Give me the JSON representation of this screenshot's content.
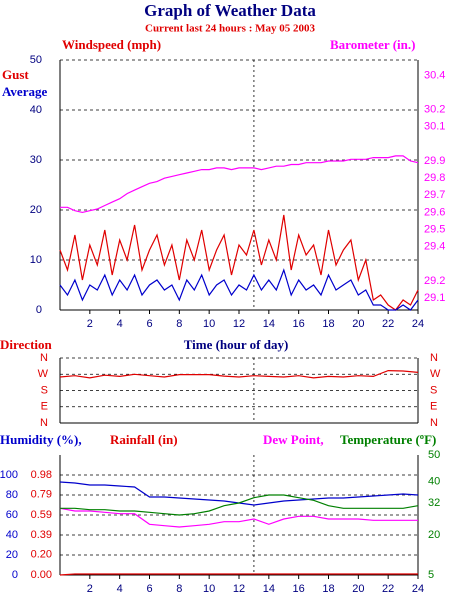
{
  "chart_data": [
    {
      "type": "line",
      "title": "Graph of Weather Data",
      "subtitle": "Current last 24 hours : May 05 2003",
      "ylabel": "Windspeed (mph)",
      "y2label": "Barometer (in.)",
      "xlabel": "Time (hour of day)",
      "current_hour": 13,
      "x": [
        0,
        0.5,
        1,
        1.5,
        2,
        2.5,
        3,
        3.5,
        4,
        4.5,
        5,
        5.5,
        6,
        6.5,
        7,
        7.5,
        8,
        8.5,
        9,
        9.5,
        10,
        10.5,
        11,
        11.5,
        12,
        12.5,
        13,
        13.5,
        14,
        14.5,
        15,
        15.5,
        16,
        16.5,
        17,
        17.5,
        18,
        18.5,
        19,
        19.5,
        20,
        20.5,
        21,
        21.5,
        22,
        22.5,
        23,
        23.5,
        24
      ],
      "xlim": [
        0,
        24
      ],
      "xticks": [
        2,
        4,
        6,
        8,
        10,
        12,
        14,
        16,
        18,
        20,
        22,
        24
      ],
      "ylim": [
        0,
        50
      ],
      "yticks": [
        0,
        10,
        20,
        30,
        40,
        50
      ],
      "y2lim": [
        29.03,
        30.49
      ],
      "y2ticks": [
        29.1,
        29.2,
        29.4,
        29.5,
        29.6,
        29.7,
        29.8,
        29.9,
        30.1,
        30.2,
        30.4
      ],
      "grid": true,
      "series": [
        {
          "name": "Gust",
          "color": "#e00000",
          "values": [
            12,
            8,
            15,
            6,
            13,
            9,
            16,
            7,
            14,
            10,
            17,
            8,
            12,
            15,
            9,
            13,
            6,
            14,
            10,
            16,
            8,
            12,
            15,
            7,
            13,
            11,
            16,
            9,
            14,
            10,
            19,
            8,
            15,
            11,
            13,
            7,
            16,
            9,
            12,
            14,
            6,
            10,
            2,
            3,
            1,
            0,
            2,
            1,
            4
          ]
        },
        {
          "name": "Average",
          "color": "#0000cc",
          "values": [
            5,
            3,
            6,
            2,
            5,
            4,
            7,
            3,
            6,
            4,
            7,
            3,
            5,
            6,
            4,
            5,
            2,
            6,
            4,
            7,
            3,
            5,
            6,
            3,
            5,
            4,
            7,
            4,
            6,
            4,
            8,
            3,
            6,
            4,
            5,
            3,
            7,
            4,
            5,
            6,
            3,
            4,
            1,
            1,
            0,
            0,
            1,
            0,
            2
          ]
        },
        {
          "name": "Barometer",
          "color": "#ff00ff",
          "axis": "y2",
          "values": [
            29.63,
            29.63,
            29.61,
            29.6,
            29.61,
            29.62,
            29.64,
            29.66,
            29.68,
            29.71,
            29.73,
            29.75,
            29.77,
            29.78,
            29.8,
            29.81,
            29.82,
            29.83,
            29.84,
            29.85,
            29.85,
            29.86,
            29.86,
            29.85,
            29.86,
            29.86,
            29.86,
            29.85,
            29.86,
            29.87,
            29.87,
            29.88,
            29.88,
            29.89,
            29.89,
            29.89,
            29.9,
            29.9,
            29.9,
            29.91,
            29.91,
            29.91,
            29.92,
            29.92,
            29.92,
            29.93,
            29.93,
            29.9,
            29.89
          ]
        }
      ]
    },
    {
      "type": "line",
      "ylabel": "Direction",
      "x": [
        0,
        1,
        2,
        3,
        4,
        5,
        6,
        7,
        8,
        9,
        10,
        11,
        12,
        13,
        14,
        15,
        16,
        17,
        18,
        19,
        20,
        21,
        22,
        23,
        24
      ],
      "xlim": [
        0,
        24
      ],
      "ylim": [
        0,
        360
      ],
      "yticks": [
        {
          "value": 360,
          "label": "N"
        },
        {
          "value": 270,
          "label": "W"
        },
        {
          "value": 180,
          "label": "S"
        },
        {
          "value": 90,
          "label": "E"
        },
        {
          "value": 0,
          "label": "N"
        }
      ],
      "y2lim": [
        0,
        360
      ],
      "y2ticks": [
        {
          "value": 360,
          "label": "N"
        },
        {
          "value": 270,
          "label": "W"
        },
        {
          "value": 180,
          "label": "S"
        },
        {
          "value": 90,
          "label": "E"
        },
        {
          "value": 0,
          "label": "N"
        }
      ],
      "grid": true,
      "series": [
        {
          "color": "#e00000",
          "values": [
            255,
            262,
            250,
            265,
            258,
            270,
            262,
            255,
            268,
            268,
            268,
            260,
            255,
            262,
            258,
            255,
            262,
            250,
            258,
            255,
            262,
            258,
            290,
            288,
            280
          ]
        }
      ]
    },
    {
      "type": "line",
      "x": [
        0,
        1,
        2,
        3,
        4,
        5,
        6,
        7,
        8,
        9,
        10,
        11,
        12,
        13,
        14,
        15,
        16,
        17,
        18,
        19,
        20,
        21,
        22,
        23,
        24
      ],
      "xlim": [
        0,
        24
      ],
      "xticks": [
        2,
        4,
        6,
        8,
        10,
        12,
        14,
        16,
        18,
        20,
        22,
        24
      ],
      "ylim": [
        0,
        120
      ],
      "yticks": [
        0,
        20,
        40,
        60,
        80,
        100
      ],
      "y3lim": [
        0,
        1.18
      ],
      "y3ticks": [
        {
          "value": 0,
          "label": "0.00"
        },
        {
          "value": 0.2,
          "label": "0.20"
        },
        0.39,
        0.59,
        0.79,
        0.98
      ],
      "y2lim": [
        5,
        50
      ],
      "y2ticks": [
        5,
        20,
        32,
        40,
        50
      ],
      "grid": true,
      "series": [
        {
          "name": "Humidity (%),",
          "color": "#0000cc",
          "values": [
            93,
            92,
            90,
            90,
            89,
            88,
            78,
            78,
            77,
            76,
            75,
            74,
            72,
            70,
            72,
            74,
            75,
            76,
            77,
            77,
            78,
            79,
            80,
            81,
            80
          ]
        },
        {
          "name": "Rainfall (in)",
          "color": "#e00000",
          "axis": "y3",
          "values": [
            0,
            0.01,
            0.01,
            0.01,
            0.01,
            0.01,
            0.01,
            0.01,
            0.01,
            0.01,
            0.01,
            0.01,
            0.01,
            0.01,
            0.01,
            0.01,
            0.01,
            0.01,
            0.01,
            0.01,
            0.01,
            0.01,
            0.01,
            0.01,
            0.01
          ]
        },
        {
          "name": "Dew Point,",
          "color": "#ff00ff",
          "axis": "y2",
          "values": [
            30,
            29,
            29,
            28.5,
            28,
            28,
            24,
            23.5,
            23,
            23.5,
            24,
            25,
            25,
            26,
            24,
            26,
            27,
            27,
            26,
            26,
            26,
            25.5,
            25.5,
            25.5,
            25.5
          ]
        },
        {
          "name": "Temperature (ºF)",
          "color": "#008000",
          "axis": "y2",
          "values": [
            30,
            30,
            29.5,
            29.5,
            29,
            29,
            28.5,
            28,
            27.5,
            28,
            29,
            31,
            32,
            34,
            35,
            35,
            34,
            33,
            31,
            30,
            30,
            30,
            30,
            30,
            31
          ]
        }
      ]
    }
  ]
}
